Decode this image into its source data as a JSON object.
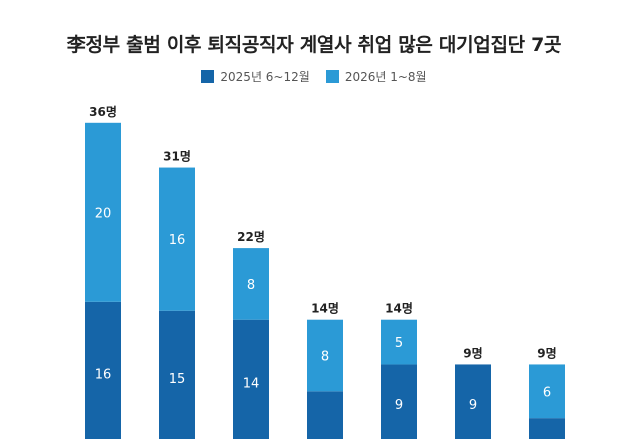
{
  "chart_data": {
    "type": "bar",
    "stacked": true,
    "title": "李정부 출범 이후 퇴직공직자 계열사 취업 많은 대기업집단 7곳",
    "categories": [
      "",
      "",
      "",
      "",
      "",
      "",
      ""
    ],
    "series": [
      {
        "name": "2025년 6~12월",
        "color": "#1565a8",
        "values": [
          16,
          15,
          14,
          6,
          9,
          9,
          3
        ]
      },
      {
        "name": "2026년 1~8월",
        "color": "#2b9ad6",
        "values": [
          20,
          16,
          8,
          8,
          5,
          0,
          6
        ]
      }
    ],
    "totals": [
      "36명",
      "31명",
      "22명",
      "14명",
      "14명",
      "9명",
      "9명"
    ],
    "segment_labels": {
      "bottom": [
        "16",
        "15",
        "14",
        "",
        "9",
        "9",
        ""
      ],
      "top": [
        "20",
        "16",
        "8",
        "8",
        "5",
        "",
        "6"
      ]
    },
    "grid": false,
    "legend": "top"
  }
}
